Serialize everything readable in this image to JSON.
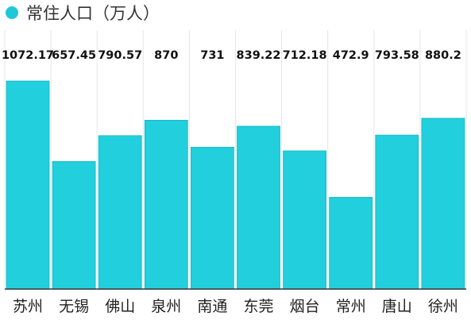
{
  "chart_data": {
    "type": "bar",
    "title": "",
    "xlabel": "",
    "ylabel": "",
    "legend": {
      "placement": "top-left",
      "entries": [
        "常住人口（万人）"
      ]
    },
    "categories": [
      "苏州",
      "无锡",
      "佛山",
      "泉州",
      "南通",
      "东莞",
      "烟台",
      "常州",
      "唐山",
      "徐州"
    ],
    "series": [
      {
        "name": "常住人口（万人）",
        "values": [
          1072.17,
          657.45,
          790.57,
          870,
          731,
          839.22,
          712.18,
          472.9,
          793.58,
          880.2
        ],
        "labels": [
          "1072.17",
          "657.45",
          "790.57",
          "870",
          "731",
          "839.22",
          "712.18",
          "472.9",
          "793.58",
          "880.2"
        ]
      }
    ],
    "ylim": [
      0,
      1072.17
    ],
    "grid": false,
    "colors": {
      "bar": "#22cfdc",
      "bar_edge": "#17b6c4",
      "legend_dot": "#1ec8d8",
      "baseline": "#333333",
      "divider": "#e6e6e6",
      "background": "#ffffff"
    }
  }
}
